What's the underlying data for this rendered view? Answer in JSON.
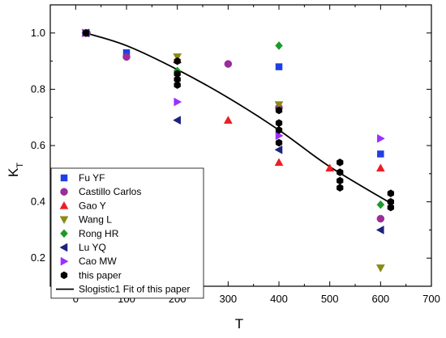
{
  "chart_data": {
    "type": "scatter",
    "xlabel": "T",
    "ylabel": "K",
    "ylabel_subscript": "T",
    "xlim": [
      -50,
      700
    ],
    "ylim": [
      0.1,
      1.1
    ],
    "xticks": [
      0,
      100,
      200,
      300,
      400,
      500,
      600,
      700
    ],
    "yticks": [
      0.2,
      0.4,
      0.6,
      0.8,
      1.0
    ],
    "ytick_labels": [
      "0.2",
      "0.4",
      "0.6",
      "0.8",
      "1.0"
    ],
    "grid": false,
    "legend_position": "bottom-left",
    "series": [
      {
        "name": "Fu YF",
        "marker": "square",
        "color": "#1f3fe6",
        "points": [
          [
            20,
            1.0
          ],
          [
            100,
            0.93
          ],
          [
            400,
            0.88
          ],
          [
            600,
            0.57
          ]
        ]
      },
      {
        "name": "Castillo Carlos",
        "marker": "circle",
        "color": "#9b2d9b",
        "points": [
          [
            22,
            1.0
          ],
          [
            100,
            0.915
          ],
          [
            300,
            0.89
          ],
          [
            400,
            0.735
          ],
          [
            600,
            0.34
          ]
        ]
      },
      {
        "name": "Gao Y",
        "marker": "triangle-up",
        "color": "#ee1c24",
        "points": [
          [
            20,
            1.0
          ],
          [
            200,
            0.905
          ],
          [
            300,
            0.69
          ],
          [
            400,
            0.54
          ],
          [
            500,
            0.52
          ],
          [
            600,
            0.52
          ]
        ]
      },
      {
        "name": "Wang L",
        "marker": "triangle-down",
        "color": "#8a8a14",
        "points": [
          [
            20,
            1.0
          ],
          [
            200,
            0.915
          ],
          [
            400,
            0.745
          ],
          [
            600,
            0.165
          ]
        ]
      },
      {
        "name": "Rong HR",
        "marker": "diamond",
        "color": "#1b9a2a",
        "points": [
          [
            20,
            1.0
          ],
          [
            200,
            0.865
          ],
          [
            400,
            0.955
          ],
          [
            600,
            0.39
          ]
        ]
      },
      {
        "name": "Lu YQ",
        "marker": "triangle-left",
        "color": "#1a237e",
        "points": [
          [
            20,
            1.0
          ],
          [
            200,
            0.69
          ],
          [
            400,
            0.585
          ],
          [
            600,
            0.3
          ]
        ]
      },
      {
        "name": "Cao MW",
        "marker": "triangle-right",
        "color": "#9b30ff",
        "points": [
          [
            20,
            1.0
          ],
          [
            200,
            0.755
          ],
          [
            400,
            0.635
          ],
          [
            600,
            0.625
          ]
        ]
      },
      {
        "name": "this paper",
        "marker": "hexagon",
        "color": "#000000",
        "points": [
          [
            20,
            1.0
          ],
          [
            200,
            0.9
          ],
          [
            200,
            0.855
          ],
          [
            200,
            0.835
          ],
          [
            200,
            0.815
          ],
          [
            400,
            0.725
          ],
          [
            400,
            0.68
          ],
          [
            400,
            0.655
          ],
          [
            400,
            0.61
          ],
          [
            520,
            0.54
          ],
          [
            520,
            0.505
          ],
          [
            520,
            0.475
          ],
          [
            520,
            0.45
          ],
          [
            620,
            0.43
          ],
          [
            620,
            0.4
          ],
          [
            620,
            0.38
          ]
        ]
      }
    ],
    "fit": {
      "name": "Slogistic1 Fit of this paper",
      "color": "#000000",
      "x": [
        20,
        100,
        200,
        300,
        400,
        500,
        620
      ],
      "y": [
        1.0,
        0.955,
        0.87,
        0.77,
        0.655,
        0.525,
        0.395
      ]
    }
  }
}
